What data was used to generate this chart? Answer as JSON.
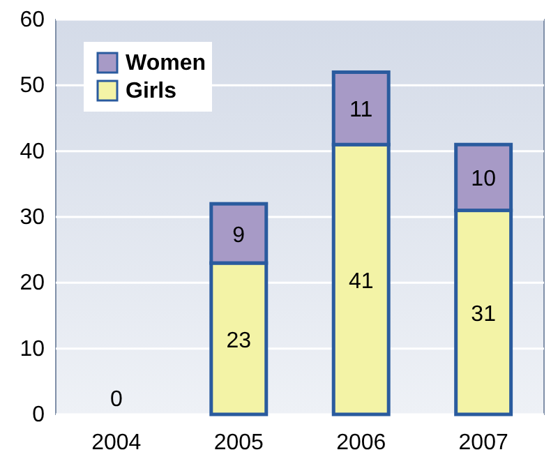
{
  "chart_data": {
    "type": "bar",
    "stacked": true,
    "categories": [
      "2004",
      "2005",
      "2006",
      "2007"
    ],
    "series": [
      {
        "name": "Girls",
        "color": "#f3f3a6",
        "values": [
          0,
          23,
          41,
          31
        ],
        "value_labels": [
          "0",
          "23",
          "41",
          "31"
        ]
      },
      {
        "name": "Women",
        "color": "#a79ac6",
        "values": [
          null,
          9,
          11,
          10
        ],
        "value_labels": [
          null,
          "9",
          "11",
          "10"
        ]
      }
    ],
    "ylim": [
      0,
      60
    ],
    "yticks": [
      0,
      10,
      20,
      30,
      40,
      50,
      60
    ],
    "grid": "y",
    "legend": "top left"
  }
}
